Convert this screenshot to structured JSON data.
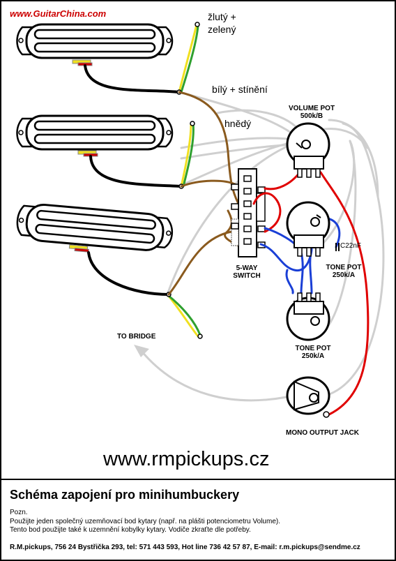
{
  "header": {
    "website": "www.GuitarChina.com"
  },
  "wire_labels": {
    "yellow_green_line1": "žlutý +",
    "yellow_green_line2": "zelený",
    "white_shield": "bílý + stínění",
    "brown": "hnědý"
  },
  "components": {
    "volume_pot_line1": "VOLUME POT",
    "volume_pot_line2": "500k/B",
    "switch_line1": "5-WAY",
    "switch_line2": "SWITCH",
    "capacitor": "C22nF",
    "tone_pot_1_line1": "TONE POT",
    "tone_pot_1_line2": "250k/A",
    "tone_pot_2_line1": "TONE POT",
    "tone_pot_2_line2": "250k/A",
    "to_bridge": "TO BRIDGE",
    "output_jack": "MONO OUTPUT JACK"
  },
  "colors": {
    "hot_wire": "#e00000",
    "tone_wire": "#1a3fd6",
    "brown_wire": "#8a5a1e",
    "ground_wire": "#d0d0d0",
    "yellow_wire": "#f0e020",
    "green_wire": "#2fa02f",
    "website_red": "#cc0000"
  },
  "website_url": "www.rmpickups.cz",
  "title": "Schéma zapojení pro minihumbuckery",
  "notes": [
    "Pozn.",
    "Použijte jeden společný uzemňovací bod kytary (např. na plášti potenciometru Volume).",
    "Tento bod použijte také k uzemnění kobylky kytary. Vodiče zkraťte dle potřeby."
  ],
  "footer": "R.M.pickups, 756 24 Bystřička 293, tel: 571 443 593, Hot line 736 42 57 87, E-mail: r.m.pickups@sendme.cz"
}
